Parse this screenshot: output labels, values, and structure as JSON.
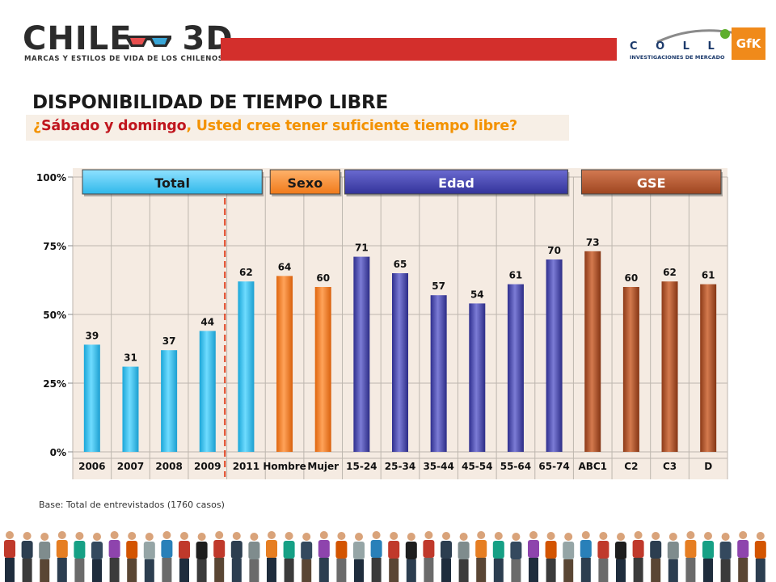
{
  "header": {
    "logo_text": "CHILE",
    "logo_3d": "3D",
    "logo_sub": "MARCAS Y ESTILOS DE VIDA DE LOS CHILENOS",
    "partner_name": "C O L L E C T",
    "partner_sub": "INVESTIGACIONES DE MERCADO",
    "gfk": "GfK",
    "band_color": "#d32f2c"
  },
  "slide": {
    "title": "DISPONIBILIDAD DE TIEMPO LIBRE",
    "q_open": "¿",
    "q_red": "Sábado y domingo",
    "q_rest": ", Usted cree tener suficiente tiempo libre?",
    "base_note": "Base: Total de entrevistados (1760 casos)"
  },
  "chart_data": {
    "type": "bar",
    "categories": [
      "2006",
      "2007",
      "2008",
      "2009",
      "2011",
      "Hombre",
      "Mujer",
      "15-24",
      "25-34",
      "35-44",
      "45-54",
      "55-64",
      "65-74",
      "ABC1",
      "C2",
      "C3",
      "D"
    ],
    "values": [
      39,
      31,
      37,
      44,
      62,
      64,
      60,
      71,
      65,
      57,
      54,
      61,
      70,
      73,
      60,
      62,
      61
    ],
    "groups_of_bars": [
      "Total",
      "Total",
      "Total",
      "Total",
      "Total",
      "Sexo",
      "Sexo",
      "Edad",
      "Edad",
      "Edad",
      "Edad",
      "Edad",
      "Edad",
      "GSE",
      "GSE",
      "GSE",
      "GSE"
    ],
    "group_headers": [
      {
        "label": "Total",
        "color": "#3fc3ef"
      },
      {
        "label": "Sexo",
        "color": "#f58220"
      },
      {
        "label": "Edad",
        "color": "#3a3aa6"
      },
      {
        "label": "GSE",
        "color": "#a84a22"
      }
    ],
    "yticks": [
      "0%",
      "25%",
      "50%",
      "75%",
      "100%"
    ],
    "ylim": [
      0,
      100
    ],
    "grid": true,
    "divider": "dashed red line between 2009 and 2011",
    "colors": {
      "Total": "#39c6f2",
      "Sexo": "#f58220",
      "Edad": "#4b4bb0",
      "GSE": "#b0522c",
      "plot_bg": "#f5ebe2",
      "divider": "#e0401e"
    }
  }
}
